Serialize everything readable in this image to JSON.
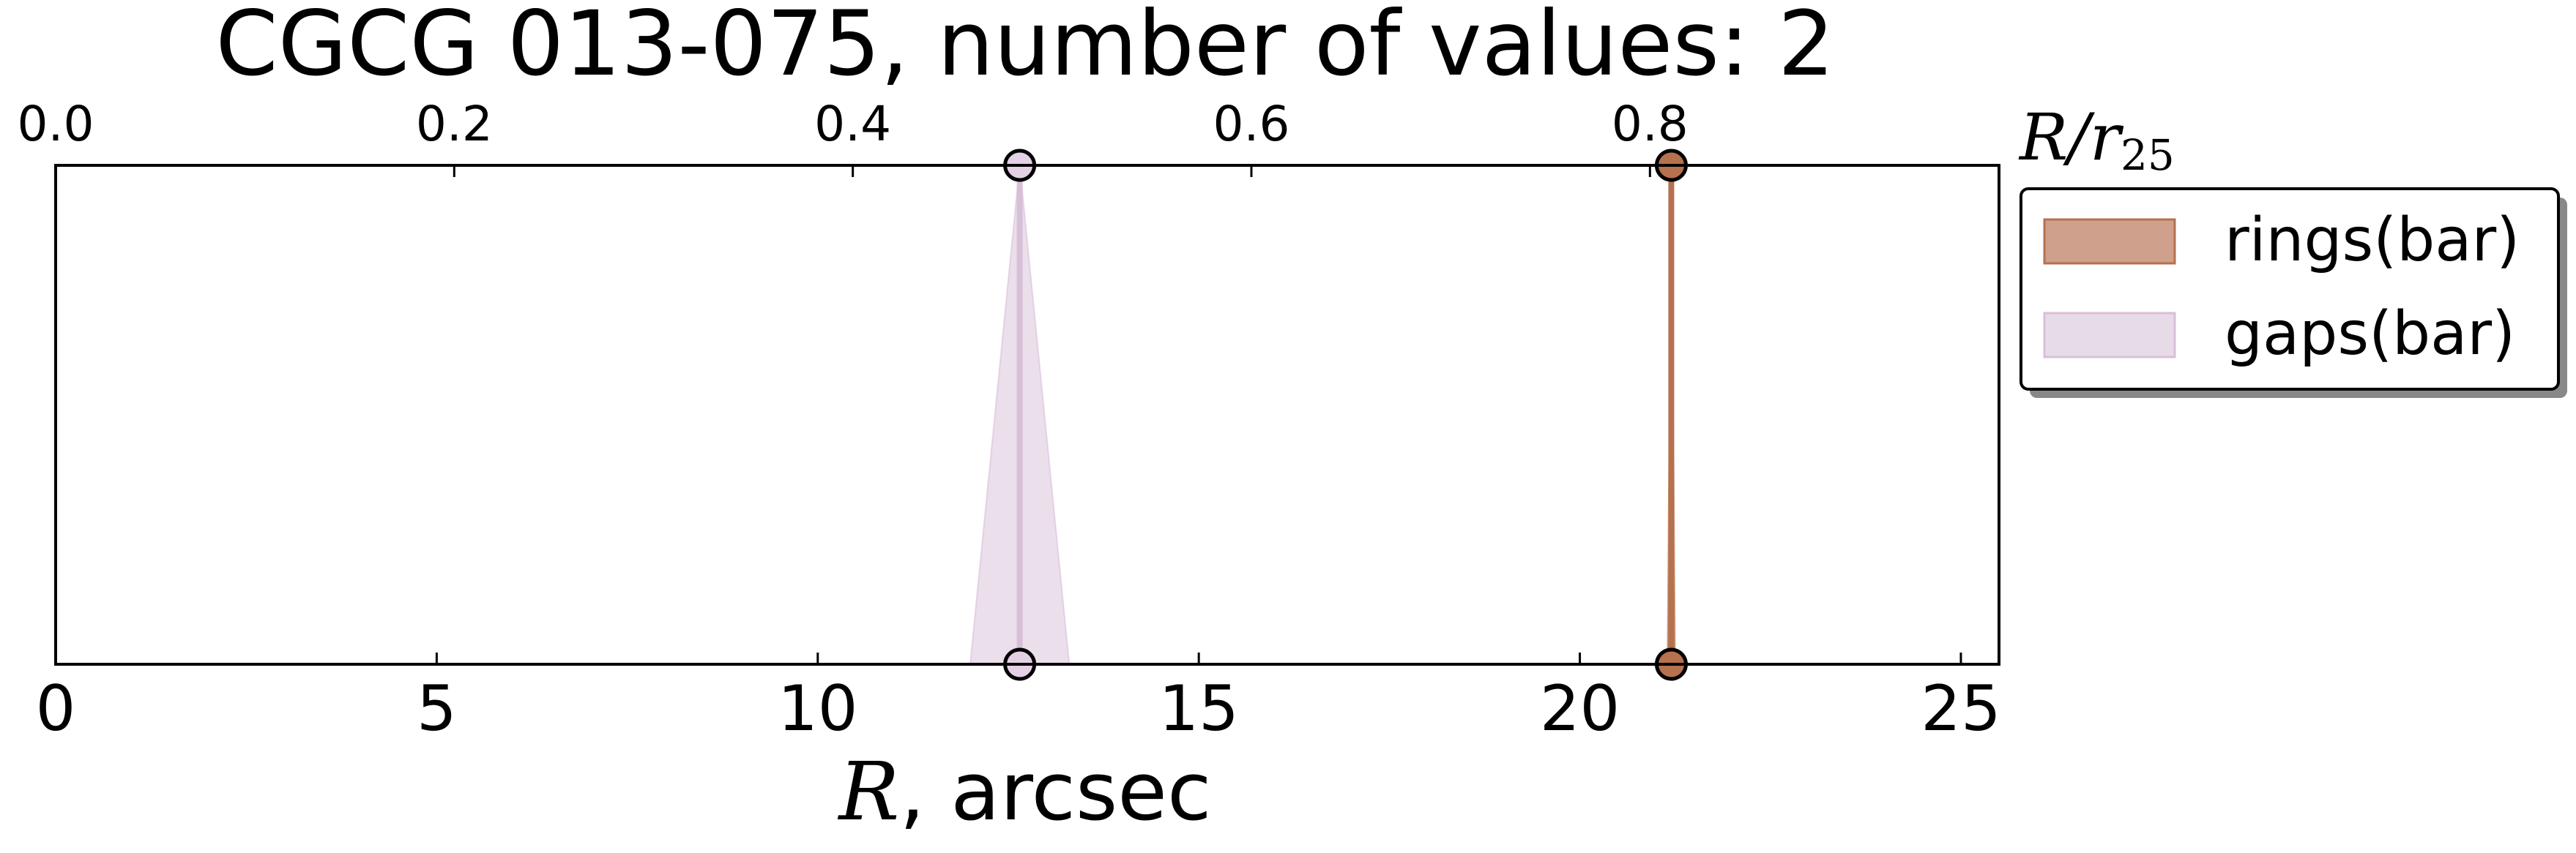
{
  "chart_data": {
    "type": "line",
    "title": "CGCG 013-075, number of values: 2",
    "xlabel": {
      "math": "R",
      "text": ", arcsec"
    },
    "x2label": {
      "math": "R/r",
      "sub": "25"
    },
    "xlim": [
      0,
      25.5
    ],
    "x_ticks": [
      0,
      5,
      10,
      15,
      20,
      25
    ],
    "x2_ticks": [
      "0.0",
      "0.2",
      "0.4",
      "0.6",
      "0.8"
    ],
    "x2_tick_positions": [
      0,
      5.23,
      10.46,
      15.69,
      20.92
    ],
    "ylim": [
      0,
      1
    ],
    "grid": false,
    "legend_position": "outside-right",
    "series": [
      {
        "name": "rings(bar)",
        "x": 21.2,
        "error": 0.05,
        "color": "#b6714f",
        "fill_color": "#cfa08b",
        "marker_color": "#b6714f"
      },
      {
        "name": "gaps(bar)",
        "x": 12.65,
        "error": 0.65,
        "color": "#d8bfd8",
        "fill_color": "#e8dbe8",
        "marker_color": "#e4d0e4"
      }
    ]
  }
}
